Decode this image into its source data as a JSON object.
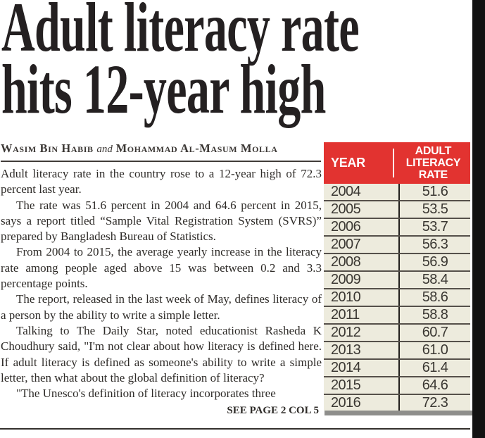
{
  "headline": {
    "line1": "Adult literacy rate",
    "line2": "hits 12-year high"
  },
  "byline": {
    "author1": "Wasim Bin Habib",
    "conjunction": "and",
    "author2": "Mohammad Al-Masum Molla"
  },
  "article": {
    "paragraphs": [
      "Adult literacy rate in the country rose to a 12-year high of 72.3 percent last year.",
      "The rate was 51.6 percent in 2004 and 64.6 percent in 2015, says a report titled “Sample Vital Registration System (SVRS)” prepared by Bangladesh Bureau of Statistics.",
      "From 2004 to 2015, the average yearly increase in the literacy rate among people aged above 15 was between 0.2 and 3.3 percentage points.",
      "The report, released in the last week of May, defines literacy of a person by the ability to write a simple letter.",
      "Talking to The Daily Star, noted educationist Rasheda K Choudhury said, \"I'm not clear about how literacy is defined here. If adult literacy is defined as someone's ability to write a simple letter, then what about the global definition of literacy?",
      "\"The Unesco's definition of literacy incorporates three"
    ],
    "continuation": "SEE PAGE 2 COL 5"
  },
  "table": {
    "col1_header": "YEAR",
    "col2_header": "ADULT LITERACY RATE",
    "rows": [
      [
        "2004",
        "51.6"
      ],
      [
        "2005",
        "53.5"
      ],
      [
        "2006",
        "53.7"
      ],
      [
        "2007",
        "56.3"
      ],
      [
        "2008",
        "56.9"
      ],
      [
        "2009",
        "58.4"
      ],
      [
        "2010",
        "58.6"
      ],
      [
        "2011",
        "58.8"
      ],
      [
        "2012",
        "60.7"
      ],
      [
        "2013",
        "61.0"
      ],
      [
        "2014",
        "61.4"
      ],
      [
        "2015",
        "64.6"
      ],
      [
        "2016",
        "72.3"
      ]
    ]
  },
  "colors": {
    "header_red": "#e23330",
    "table_bg": "#edebdd",
    "headline_ink": "#242021"
  }
}
